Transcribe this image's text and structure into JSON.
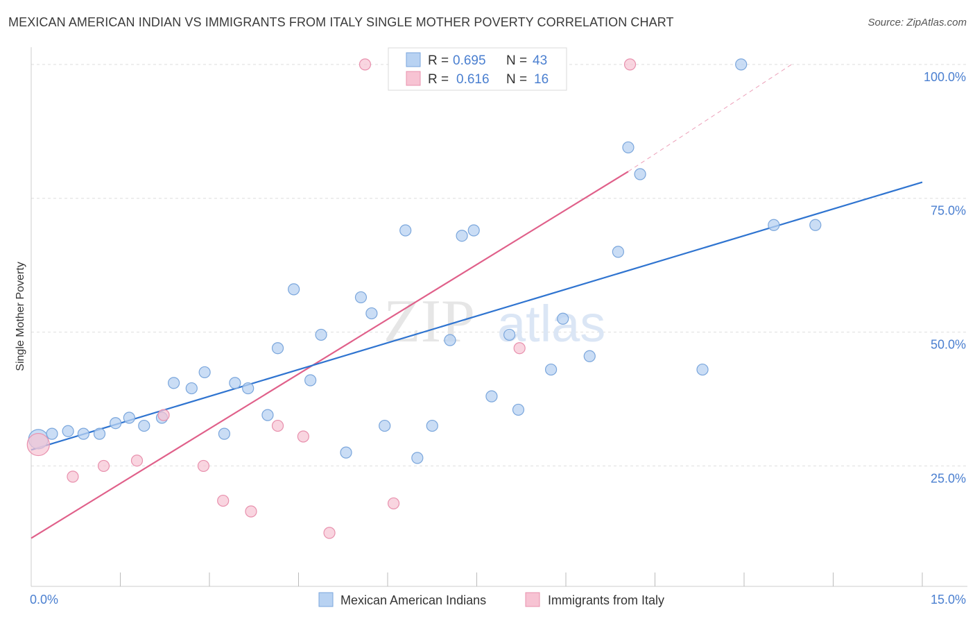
{
  "title": "MEXICAN AMERICAN INDIAN VS IMMIGRANTS FROM ITALY SINGLE MOTHER POVERTY CORRELATION CHART",
  "source": "Source: ZipAtlas.com",
  "watermark": {
    "zip": "ZIP",
    "atlas": "atlas"
  },
  "colors": {
    "blue_fill": "#b8d2f2",
    "blue_stroke": "#7aa6dc",
    "blue_line": "#2f74d0",
    "pink_fill": "#f7c3d3",
    "pink_stroke": "#e890ad",
    "pink_line": "#e0608a",
    "accent_text": "#4a7fd0",
    "grid": "#dedede"
  },
  "legend_stats": [
    {
      "r_label": "R =",
      "r_value": "0.695",
      "n_label": "N =",
      "n_value": "43",
      "series": "blue"
    },
    {
      "r_label": "R =",
      "r_value": "0.616",
      "n_label": "N =",
      "n_value": "16",
      "series": "pink"
    }
  ],
  "chart_data": {
    "type": "scatter",
    "title": "MEXICAN AMERICAN INDIAN VS IMMIGRANTS FROM ITALY SINGLE MOTHER POVERTY CORRELATION CHART",
    "xlabel": "",
    "ylabel": "Single Mother Poverty",
    "xlim": [
      0,
      15
    ],
    "ylim": [
      2.5,
      104
    ],
    "x_tick_labels": [
      {
        "x": 0,
        "label": "0.0%"
      },
      {
        "x": 15,
        "label": "15.0%"
      }
    ],
    "y_tick_labels": [
      {
        "y": 100,
        "label": "100.0%"
      },
      {
        "y": 75,
        "label": "75.0%"
      },
      {
        "y": 50,
        "label": "50.0%"
      },
      {
        "y": 25,
        "label": "25.0%"
      }
    ],
    "legend_position": "bottom",
    "grid": true,
    "series": [
      {
        "name": "Mexican American Indians",
        "color": "#b8d2f2",
        "r": 0.695,
        "n": 43,
        "trend": {
          "x": [
            0,
            15
          ],
          "y": [
            28,
            78
          ]
        },
        "points": [
          {
            "x": 0.12,
            "y": 30.0
          },
          {
            "x": 0.35,
            "y": 31.0
          },
          {
            "x": 0.62,
            "y": 31.5
          },
          {
            "x": 0.88,
            "y": 31.0
          },
          {
            "x": 1.15,
            "y": 31.0
          },
          {
            "x": 1.42,
            "y": 33.0
          },
          {
            "x": 1.65,
            "y": 34.0
          },
          {
            "x": 1.9,
            "y": 32.5
          },
          {
            "x": 2.2,
            "y": 34.0
          },
          {
            "x": 2.4,
            "y": 40.5
          },
          {
            "x": 2.7,
            "y": 39.5
          },
          {
            "x": 2.92,
            "y": 42.5
          },
          {
            "x": 3.25,
            "y": 31.0
          },
          {
            "x": 3.43,
            "y": 40.5
          },
          {
            "x": 3.65,
            "y": 39.5
          },
          {
            "x": 3.98,
            "y": 34.5
          },
          {
            "x": 4.15,
            "y": 47.0
          },
          {
            "x": 4.42,
            "y": 58.0
          },
          {
            "x": 4.7,
            "y": 41.0
          },
          {
            "x": 4.88,
            "y": 49.5
          },
          {
            "x": 5.3,
            "y": 27.5
          },
          {
            "x": 5.55,
            "y": 56.5
          },
          {
            "x": 5.73,
            "y": 53.5
          },
          {
            "x": 5.95,
            "y": 32.5
          },
          {
            "x": 6.3,
            "y": 69.0
          },
          {
            "x": 6.5,
            "y": 26.5
          },
          {
            "x": 6.75,
            "y": 32.5
          },
          {
            "x": 7.05,
            "y": 48.5
          },
          {
            "x": 7.25,
            "y": 68.0
          },
          {
            "x": 7.45,
            "y": 69.0
          },
          {
            "x": 7.75,
            "y": 38.0
          },
          {
            "x": 8.05,
            "y": 49.5
          },
          {
            "x": 8.2,
            "y": 35.5
          },
          {
            "x": 8.75,
            "y": 43.0
          },
          {
            "x": 8.95,
            "y": 52.5
          },
          {
            "x": 9.4,
            "y": 45.5
          },
          {
            "x": 9.88,
            "y": 65.0
          },
          {
            "x": 10.05,
            "y": 84.5
          },
          {
            "x": 10.25,
            "y": 79.5
          },
          {
            "x": 11.3,
            "y": 43.0
          },
          {
            "x": 11.95,
            "y": 100.0
          },
          {
            "x": 12.5,
            "y": 70.0
          },
          {
            "x": 13.2,
            "y": 70.0
          }
        ]
      },
      {
        "name": "Immigrants from Italy",
        "color": "#f7c3d3",
        "r": 0.616,
        "n": 16,
        "trend": {
          "x": [
            0,
            10.05
          ],
          "y": [
            11.5,
            80
          ]
        },
        "trend_extension": {
          "x": [
            10.05,
            12.8
          ],
          "y": [
            80,
            100
          ]
        },
        "points": [
          {
            "x": 0.12,
            "y": 29.0
          },
          {
            "x": 0.7,
            "y": 23.0
          },
          {
            "x": 1.22,
            "y": 25.0
          },
          {
            "x": 1.78,
            "y": 26.0
          },
          {
            "x": 2.23,
            "y": 34.5
          },
          {
            "x": 2.9,
            "y": 25.0
          },
          {
            "x": 3.23,
            "y": 18.5
          },
          {
            "x": 3.7,
            "y": 16.5
          },
          {
            "x": 4.15,
            "y": 32.5
          },
          {
            "x": 4.58,
            "y": 30.5
          },
          {
            "x": 5.02,
            "y": 12.5
          },
          {
            "x": 5.62,
            "y": 100.0
          },
          {
            "x": 6.1,
            "y": 18.0
          },
          {
            "x": 6.88,
            "y": 100.0
          },
          {
            "x": 8.22,
            "y": 47.0
          },
          {
            "x": 10.08,
            "y": 100.0
          }
        ]
      }
    ]
  }
}
